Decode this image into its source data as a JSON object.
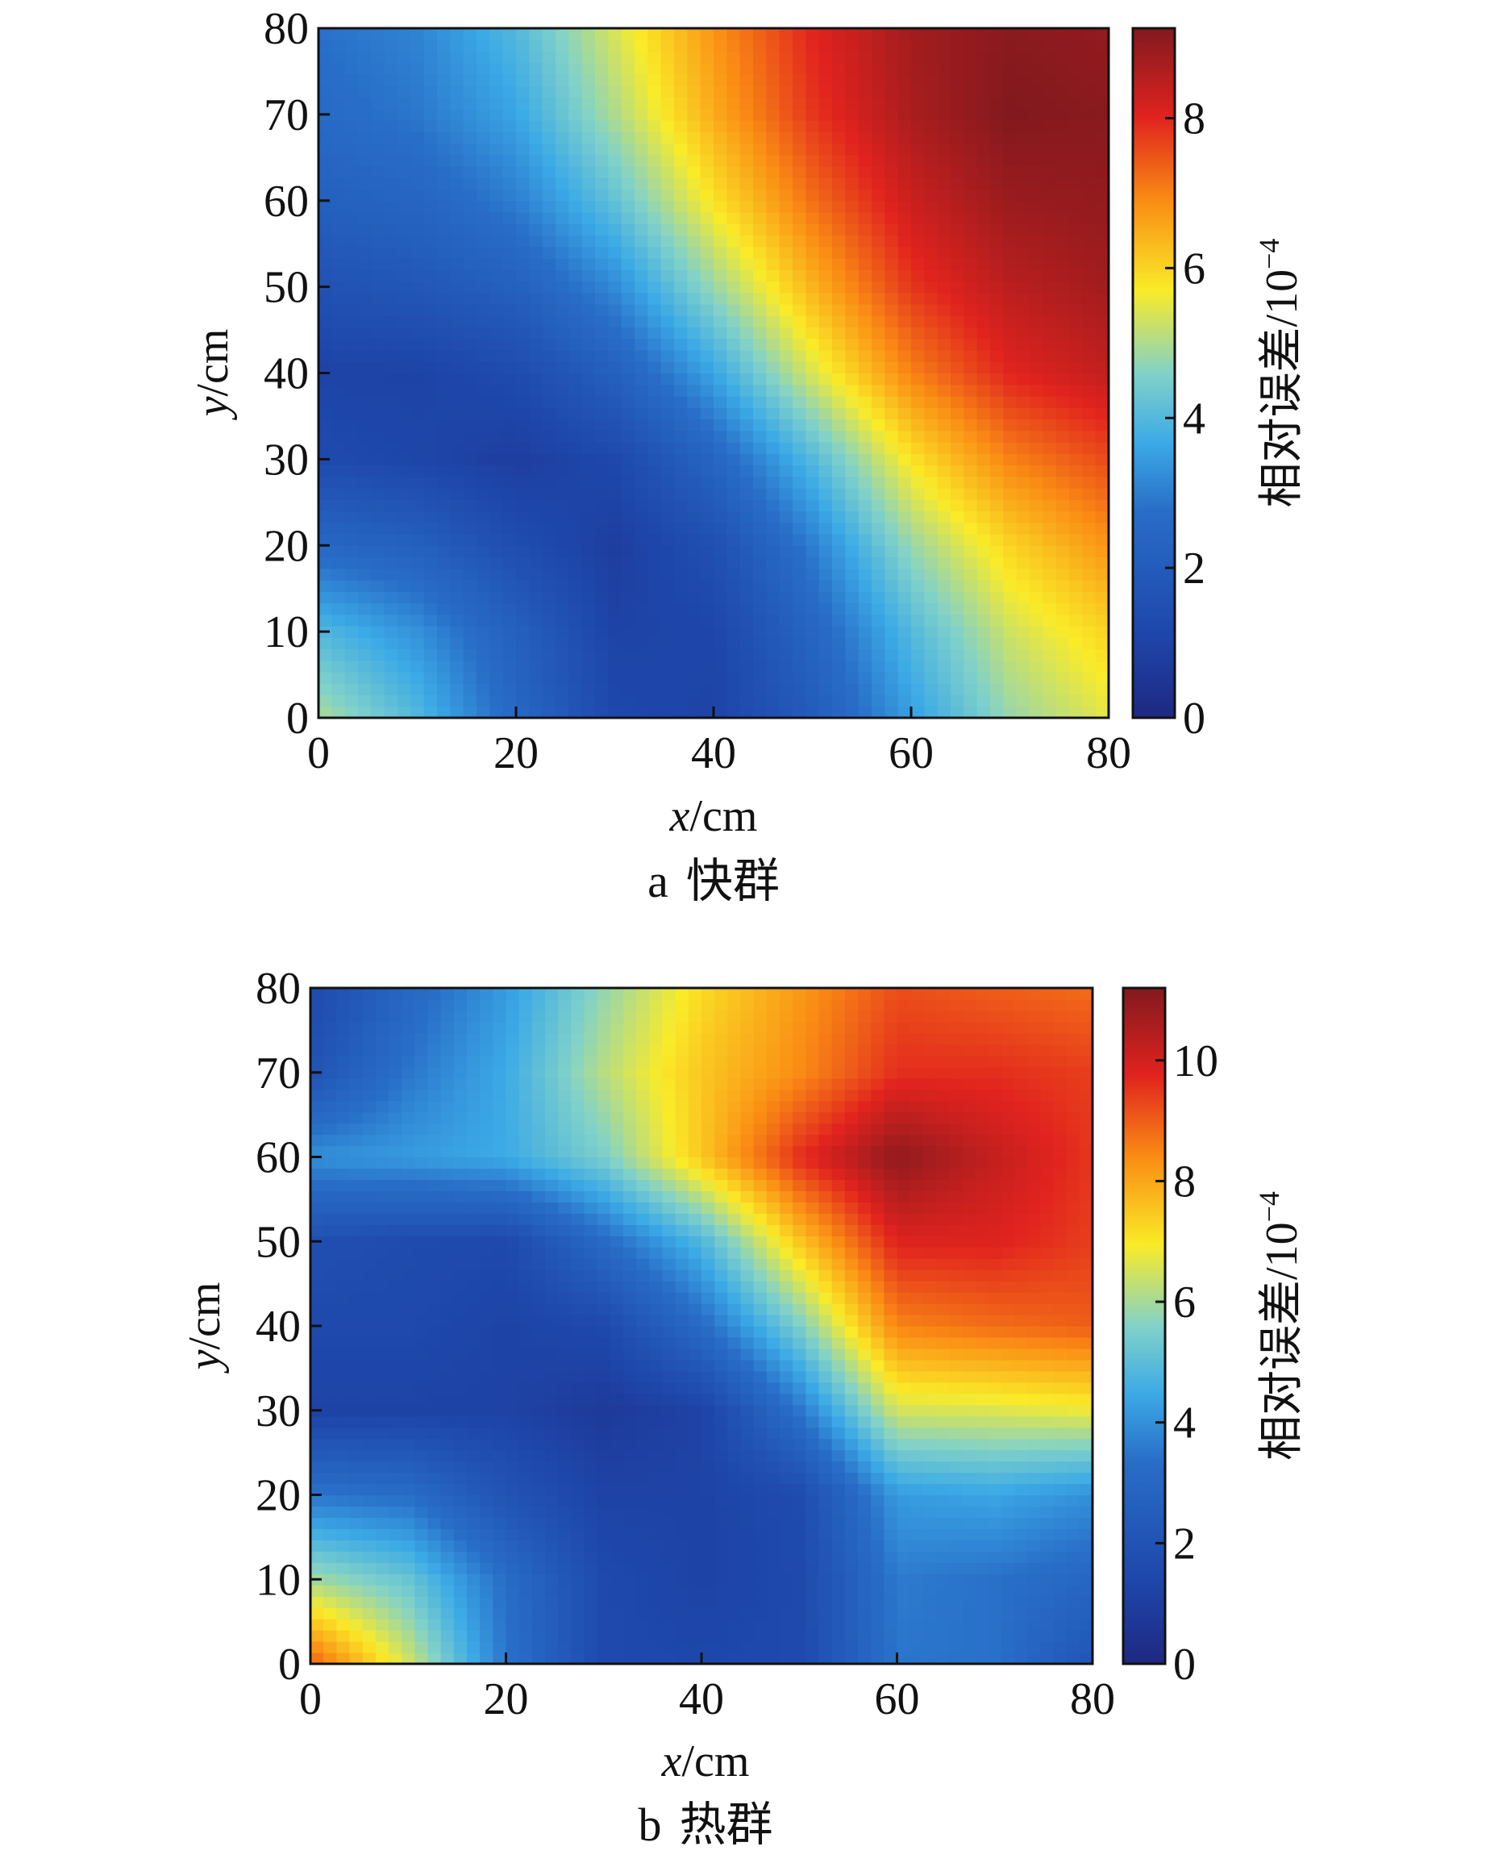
{
  "chart_data": [
    {
      "type": "heatmap",
      "caption_letter": "a",
      "caption_text": "快群",
      "xlabel_var": "x",
      "xlabel_unit": "/cm",
      "ylabel_var": "y",
      "ylabel_unit": "/cm",
      "xlim": [
        0,
        80
      ],
      "ylim": [
        0,
        80
      ],
      "xticks": [
        "0",
        "20",
        "40",
        "60",
        "80"
      ],
      "yticks": [
        "0",
        "10",
        "20",
        "30",
        "40",
        "50",
        "60",
        "70",
        "80"
      ],
      "colorbar": {
        "label": "相对误差/10",
        "label_exponent": "−4",
        "range": [
          0,
          9.2
        ],
        "ticks": [
          "0",
          "2",
          "4",
          "6",
          "8"
        ],
        "tick_values": [
          0,
          2,
          4,
          6,
          8
        ]
      },
      "grid_x": [
        0,
        10,
        20,
        30,
        40,
        50,
        60,
        70,
        80
      ],
      "grid_y": [
        0,
        10,
        20,
        30,
        40,
        50,
        60,
        70,
        80
      ],
      "z": [
        [
          5.0,
          4.0,
          2.5,
          1.2,
          1.0,
          2.0,
          3.5,
          4.8,
          5.5
        ],
        [
          4.0,
          3.3,
          2.2,
          1.0,
          1.1,
          2.4,
          4.0,
          5.3,
          6.0
        ],
        [
          2.5,
          2.2,
          1.4,
          0.8,
          1.5,
          3.0,
          4.8,
          6.0,
          6.8
        ],
        [
          1.3,
          1.1,
          0.8,
          1.2,
          2.4,
          4.0,
          5.8,
          7.0,
          7.6
        ],
        [
          1.0,
          1.0,
          1.3,
          2.2,
          3.6,
          5.4,
          7.0,
          8.0,
          8.4
        ],
        [
          1.6,
          1.8,
          2.2,
          3.2,
          4.8,
          6.4,
          7.8,
          8.5,
          8.8
        ],
        [
          2.2,
          2.4,
          3.0,
          4.2,
          5.8,
          7.2,
          8.3,
          8.9,
          9.0
        ],
        [
          2.6,
          2.9,
          3.6,
          5.0,
          6.5,
          7.8,
          8.7,
          9.2,
          9.1
        ],
        [
          2.8,
          3.1,
          4.0,
          5.4,
          6.8,
          8.0,
          8.8,
          9.1,
          9.0
        ]
      ]
    },
    {
      "type": "heatmap",
      "caption_letter": "b",
      "caption_text": "热群",
      "xlabel_var": "x",
      "xlabel_unit": "/cm",
      "ylabel_var": "y",
      "ylabel_unit": "/cm",
      "xlim": [
        0,
        80
      ],
      "ylim": [
        0,
        80
      ],
      "xticks": [
        "0",
        "20",
        "40",
        "60",
        "80"
      ],
      "yticks": [
        "0",
        "10",
        "20",
        "30",
        "40",
        "50",
        "60",
        "70",
        "80"
      ],
      "colorbar": {
        "label": "相对误差/10",
        "label_exponent": "−4",
        "range": [
          0,
          11.2
        ],
        "ticks": [
          "0",
          "2",
          "4",
          "6",
          "8",
          "10"
        ],
        "tick_values": [
          0,
          2,
          4,
          6,
          8,
          10
        ]
      },
      "grid_x": [
        0,
        10,
        20,
        30,
        40,
        50,
        60,
        70,
        80
      ],
      "grid_y": [
        0,
        10,
        20,
        30,
        40,
        50,
        60,
        70,
        80
      ],
      "z": [
        [
          9.0,
          6.5,
          3.5,
          1.5,
          1.4,
          1.5,
          3.5,
          3.4,
          2.0
        ],
        [
          6.0,
          5.2,
          3.3,
          1.5,
          1.2,
          1.5,
          3.6,
          3.4,
          3.0
        ],
        [
          3.5,
          3.3,
          2.0,
          1.2,
          1.2,
          1.6,
          4.2,
          4.4,
          4.0
        ],
        [
          1.2,
          1.2,
          1.2,
          0.8,
          1.2,
          3.5,
          6.5,
          6.6,
          6.8
        ],
        [
          1.5,
          1.5,
          1.2,
          1.5,
          3.2,
          5.5,
          8.5,
          8.8,
          9.0
        ],
        [
          1.8,
          1.6,
          1.5,
          3.2,
          4.8,
          7.5,
          9.8,
          9.8,
          9.4
        ],
        [
          4.0,
          4.2,
          4.5,
          5.5,
          7.5,
          9.6,
          11.0,
          10.2,
          9.5
        ],
        [
          2.0,
          3.5,
          4.5,
          6.2,
          7.5,
          8.4,
          9.6,
          9.6,
          9.4
        ],
        [
          1.5,
          3.0,
          4.2,
          5.8,
          7.2,
          8.2,
          9.2,
          9.0,
          8.8
        ]
      ]
    }
  ]
}
